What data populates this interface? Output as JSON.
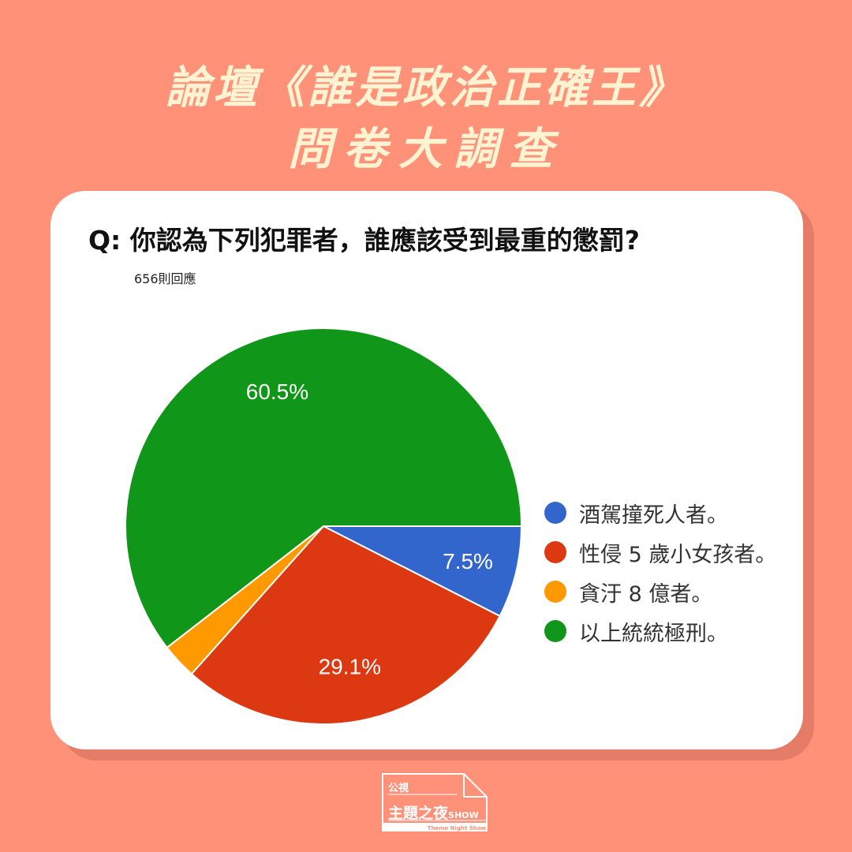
{
  "header": {
    "title_line1": "論壇《誰是政治正確王》",
    "title_line2": "問卷大調查"
  },
  "question": "Q: 你認為下列犯罪者，誰應該受到最重的懲罰?",
  "responses": "656則回應",
  "chart_data": {
    "type": "pie",
    "title": "",
    "categories": [
      "酒駕撞死人者。",
      "性侵 5 歲小女孩者。",
      "貪汙 8 億者。",
      "以上統統極刑。"
    ],
    "values": [
      7.5,
      29.1,
      2.9,
      60.5
    ],
    "labels": [
      "7.5%",
      "29.1%",
      "",
      "60.5%"
    ],
    "colors": [
      "#3366CC",
      "#DC3912",
      "#FF9900",
      "#109618"
    ],
    "legend_position": "right"
  },
  "logo": {
    "line1": "公視",
    "line2": "主題之夜",
    "line2_suffix": "SHOW",
    "line3": "Theme Night Show"
  },
  "colors": {
    "background": "#FF9178",
    "title": "#FFF3D2",
    "card": "#FFFFFF"
  }
}
